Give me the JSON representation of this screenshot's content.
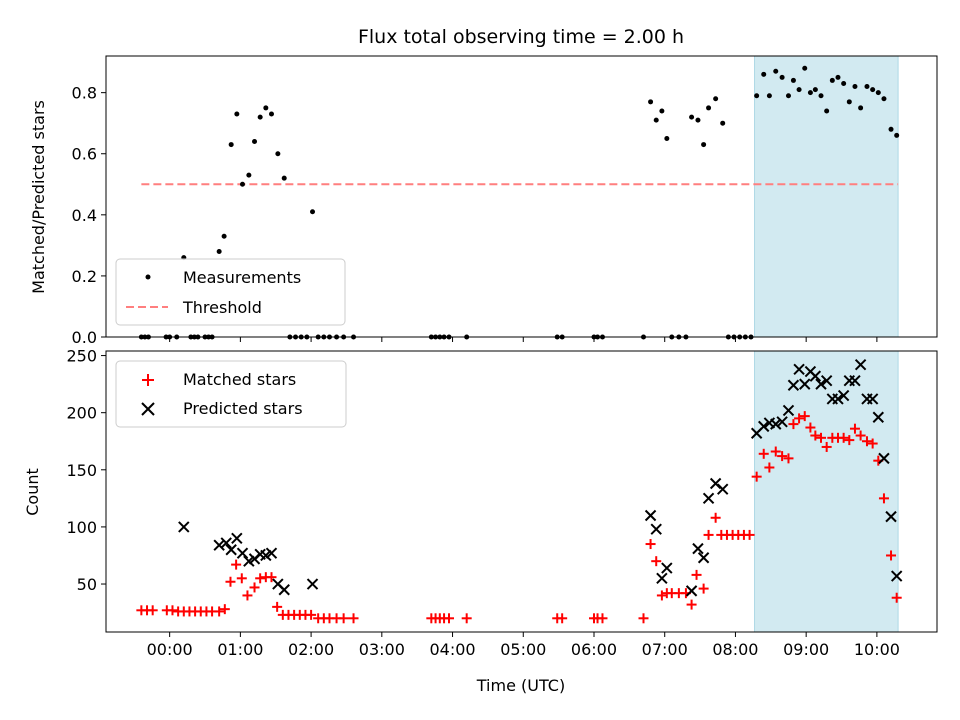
{
  "chart_data": [
    {
      "type": "scatter",
      "title": "Flux total observing time = 2.00 h",
      "xlabel": "",
      "ylabel": "Matched/Predicted stars",
      "ylim": [
        0,
        0.92
      ],
      "yticks": [
        "0.0",
        "0.2",
        "0.4",
        "0.6",
        "0.8"
      ],
      "ytick_values": [
        0,
        0.2,
        0.4,
        0.6,
        0.8
      ],
      "xlim_hours": [
        -0.9,
        10.85
      ],
      "legend": "lower-left",
      "highlight_span_hours": [
        8.27,
        10.3
      ],
      "highlight_color": "#add8e6",
      "series": [
        {
          "name": "Measurements",
          "color": "#000000",
          "marker": "dot",
          "points": [
            [
              -0.4,
              0
            ],
            [
              -0.35,
              0
            ],
            [
              -0.3,
              0
            ],
            [
              -0.05,
              0
            ],
            [
              0.0,
              0
            ],
            [
              0.1,
              0
            ],
            [
              0.2,
              0.26
            ],
            [
              0.3,
              0
            ],
            [
              0.35,
              0
            ],
            [
              0.4,
              0
            ],
            [
              0.5,
              0
            ],
            [
              0.55,
              0
            ],
            [
              0.6,
              0
            ],
            [
              0.7,
              0.28
            ],
            [
              0.77,
              0.33
            ],
            [
              0.87,
              0.63
            ],
            [
              0.95,
              0.73
            ],
            [
              1.03,
              0.5
            ],
            [
              1.12,
              0.53
            ],
            [
              1.2,
              0.64
            ],
            [
              1.28,
              0.72
            ],
            [
              1.36,
              0.75
            ],
            [
              1.44,
              0.73
            ],
            [
              1.53,
              0.6
            ],
            [
              1.62,
              0.52
            ],
            [
              1.7,
              0
            ],
            [
              1.78,
              0
            ],
            [
              1.86,
              0
            ],
            [
              1.94,
              0
            ],
            [
              2.02,
              0.41
            ],
            [
              2.1,
              0
            ],
            [
              2.18,
              0
            ],
            [
              2.26,
              0
            ],
            [
              2.36,
              0
            ],
            [
              2.46,
              0
            ],
            [
              2.6,
              0
            ],
            [
              3.7,
              0
            ],
            [
              3.76,
              0
            ],
            [
              3.82,
              0
            ],
            [
              3.88,
              0
            ],
            [
              3.95,
              0
            ],
            [
              4.2,
              0
            ],
            [
              5.48,
              0
            ],
            [
              5.55,
              0
            ],
            [
              6.0,
              0
            ],
            [
              6.05,
              0
            ],
            [
              6.12,
              0
            ],
            [
              6.7,
              0
            ],
            [
              6.8,
              0.77
            ],
            [
              6.88,
              0.71
            ],
            [
              6.96,
              0.74
            ],
            [
              7.03,
              0.65
            ],
            [
              7.1,
              0
            ],
            [
              7.2,
              0
            ],
            [
              7.3,
              0
            ],
            [
              7.38,
              0.72
            ],
            [
              7.47,
              0.71
            ],
            [
              7.55,
              0.63
            ],
            [
              7.62,
              0.75
            ],
            [
              7.72,
              0.78
            ],
            [
              7.82,
              0.7
            ],
            [
              7.9,
              0
            ],
            [
              7.98,
              0
            ],
            [
              8.06,
              0
            ],
            [
              8.14,
              0
            ],
            [
              8.22,
              0
            ],
            [
              8.3,
              0.79
            ],
            [
              8.4,
              0.86
            ],
            [
              8.48,
              0.79
            ],
            [
              8.57,
              0.87
            ],
            [
              8.66,
              0.85
            ],
            [
              8.75,
              0.79
            ],
            [
              8.82,
              0.84
            ],
            [
              8.9,
              0.81
            ],
            [
              8.98,
              0.88
            ],
            [
              9.06,
              0.8
            ],
            [
              9.13,
              0.81
            ],
            [
              9.21,
              0.79
            ],
            [
              9.29,
              0.74
            ],
            [
              9.37,
              0.84
            ],
            [
              9.45,
              0.85
            ],
            [
              9.53,
              0.83
            ],
            [
              9.61,
              0.77
            ],
            [
              9.69,
              0.82
            ],
            [
              9.77,
              0.75
            ],
            [
              9.86,
              0.82
            ],
            [
              9.94,
              0.81
            ],
            [
              10.02,
              0.8
            ],
            [
              10.1,
              0.78
            ],
            [
              10.2,
              0.68
            ],
            [
              10.28,
              0.66
            ]
          ]
        },
        {
          "name": "Threshold",
          "color": "#ff7f7f",
          "style": "dashed",
          "x_range_hours": [
            -0.4,
            10.3
          ],
          "y": 0.5
        }
      ]
    },
    {
      "type": "scatter",
      "title": "",
      "xlabel": "Time (UTC)",
      "ylabel": "Count",
      "ylim": [
        8,
        254
      ],
      "yticks": [
        "50",
        "100",
        "150",
        "200",
        "250"
      ],
      "ytick_values": [
        50,
        100,
        150,
        200,
        250
      ],
      "xticks": [
        "00:00",
        "01:00",
        "02:00",
        "03:00",
        "04:00",
        "05:00",
        "06:00",
        "07:00",
        "08:00",
        "09:00",
        "10:00"
      ],
      "xtick_values_hours": [
        0,
        1,
        2,
        3,
        4,
        5,
        6,
        7,
        8,
        9,
        10
      ],
      "xlim_hours": [
        -0.9,
        10.85
      ],
      "legend": "top-left",
      "highlight_span_hours": [
        8.27,
        10.3
      ],
      "highlight_color": "#add8e6",
      "series": [
        {
          "name": "Matched stars",
          "color": "#ff0000",
          "marker": "plus",
          "points": [
            [
              -0.4,
              27
            ],
            [
              -0.32,
              27
            ],
            [
              -0.24,
              27
            ],
            [
              -0.04,
              27
            ],
            [
              0.04,
              27
            ],
            [
              0.12,
              26
            ],
            [
              0.2,
              26
            ],
            [
              0.28,
              26
            ],
            [
              0.36,
              26
            ],
            [
              0.44,
              26
            ],
            [
              0.52,
              26
            ],
            [
              0.6,
              26
            ],
            [
              0.7,
              26
            ],
            [
              0.78,
              28
            ],
            [
              0.86,
              52
            ],
            [
              0.94,
              67
            ],
            [
              1.02,
              55
            ],
            [
              1.1,
              40
            ],
            [
              1.2,
              47
            ],
            [
              1.28,
              55
            ],
            [
              1.36,
              56
            ],
            [
              1.44,
              56
            ],
            [
              1.52,
              30
            ],
            [
              1.6,
              23
            ],
            [
              1.68,
              23
            ],
            [
              1.76,
              23
            ],
            [
              1.84,
              23
            ],
            [
              1.92,
              23
            ],
            [
              2.0,
              23
            ],
            [
              2.1,
              20
            ],
            [
              2.18,
              20
            ],
            [
              2.26,
              20
            ],
            [
              2.36,
              20
            ],
            [
              2.46,
              20
            ],
            [
              2.6,
              20
            ],
            [
              3.7,
              20
            ],
            [
              3.76,
              20
            ],
            [
              3.82,
              20
            ],
            [
              3.88,
              20
            ],
            [
              3.95,
              20
            ],
            [
              4.2,
              20
            ],
            [
              5.48,
              20
            ],
            [
              5.55,
              20
            ],
            [
              6.0,
              20
            ],
            [
              6.05,
              20
            ],
            [
              6.12,
              20
            ],
            [
              6.7,
              20
            ],
            [
              6.8,
              85
            ],
            [
              6.88,
              70
            ],
            [
              6.96,
              40
            ],
            [
              7.03,
              42
            ],
            [
              7.1,
              42
            ],
            [
              7.2,
              42
            ],
            [
              7.3,
              42
            ],
            [
              7.38,
              32
            ],
            [
              7.45,
              58
            ],
            [
              7.55,
              46
            ],
            [
              7.62,
              93
            ],
            [
              7.72,
              108
            ],
            [
              7.8,
              93
            ],
            [
              7.88,
              93
            ],
            [
              7.96,
              93
            ],
            [
              8.04,
              93
            ],
            [
              8.12,
              93
            ],
            [
              8.2,
              93
            ],
            [
              8.3,
              144
            ],
            [
              8.4,
              164
            ],
            [
              8.48,
              152
            ],
            [
              8.57,
              166
            ],
            [
              8.66,
              162
            ],
            [
              8.75,
              160
            ],
            [
              8.82,
              190
            ],
            [
              8.9,
              195
            ],
            [
              8.98,
              197
            ],
            [
              9.06,
              187
            ],
            [
              9.13,
              180
            ],
            [
              9.21,
              178
            ],
            [
              9.29,
              170
            ],
            [
              9.37,
              178
            ],
            [
              9.45,
              178
            ],
            [
              9.53,
              178
            ],
            [
              9.61,
              176
            ],
            [
              9.69,
              186
            ],
            [
              9.77,
              180
            ],
            [
              9.86,
              175
            ],
            [
              9.94,
              173
            ],
            [
              10.02,
              158
            ],
            [
              10.1,
              125
            ],
            [
              10.2,
              75
            ],
            [
              10.28,
              38
            ]
          ]
        },
        {
          "name": "Predicted stars",
          "color": "#000000",
          "marker": "x",
          "points": [
            [
              0.2,
              100
            ],
            [
              0.7,
              84
            ],
            [
              0.8,
              86
            ],
            [
              0.87,
              80
            ],
            [
              0.95,
              90
            ],
            [
              1.03,
              77
            ],
            [
              1.12,
              70
            ],
            [
              1.2,
              72
            ],
            [
              1.28,
              76
            ],
            [
              1.36,
              75
            ],
            [
              1.44,
              77
            ],
            [
              1.53,
              50
            ],
            [
              1.62,
              45
            ],
            [
              2.02,
              50
            ],
            [
              6.8,
              110
            ],
            [
              6.88,
              98
            ],
            [
              6.96,
              55
            ],
            [
              7.03,
              64
            ],
            [
              7.38,
              44
            ],
            [
              7.47,
              81
            ],
            [
              7.55,
              73
            ],
            [
              7.62,
              125
            ],
            [
              7.72,
              138
            ],
            [
              7.82,
              133
            ],
            [
              8.3,
              182
            ],
            [
              8.4,
              188
            ],
            [
              8.48,
              191
            ],
            [
              8.57,
              190
            ],
            [
              8.66,
              192
            ],
            [
              8.75,
              202
            ],
            [
              8.82,
              224
            ],
            [
              8.9,
              238
            ],
            [
              8.98,
              225
            ],
            [
              9.06,
              236
            ],
            [
              9.13,
              232
            ],
            [
              9.21,
              225
            ],
            [
              9.29,
              228
            ],
            [
              9.37,
              212
            ],
            [
              9.45,
              212
            ],
            [
              9.53,
              215
            ],
            [
              9.61,
              228
            ],
            [
              9.69,
              228
            ],
            [
              9.77,
              242
            ],
            [
              9.86,
              212
            ],
            [
              9.94,
              212
            ],
            [
              10.02,
              196
            ],
            [
              10.1,
              160
            ],
            [
              10.2,
              109
            ],
            [
              10.28,
              57
            ]
          ]
        }
      ]
    }
  ]
}
